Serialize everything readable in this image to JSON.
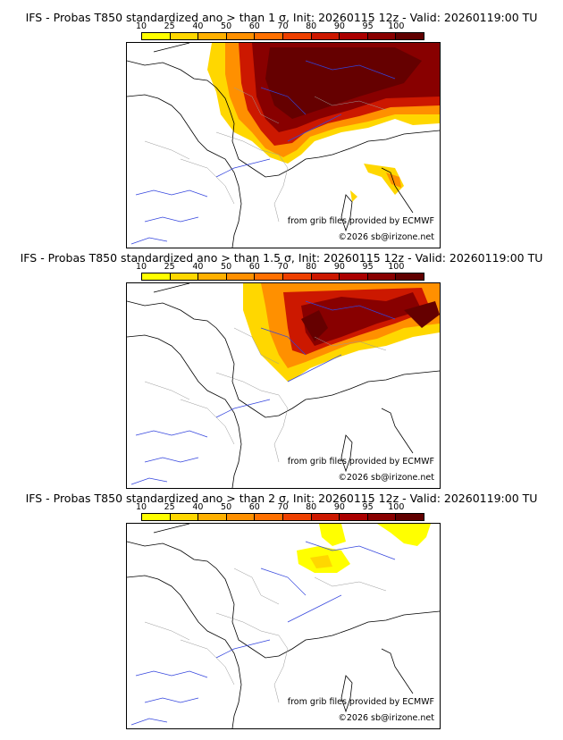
{
  "colorbar": {
    "labels": [
      "10",
      "25",
      "40",
      "50",
      "60",
      "70",
      "80",
      "90",
      "95",
      "100"
    ],
    "colors": [
      "#ffff00",
      "#ffd700",
      "#ffb000",
      "#ff9000",
      "#ff7000",
      "#ee4000",
      "#cc1800",
      "#aa0000",
      "#880000",
      "#600000"
    ]
  },
  "panels": [
    {
      "title": "IFS - Probas T850  standardized ano > than 1 σ, Init: 20260115 12z - Valid: 20260119:00 TU",
      "credit1": "from grib files provided by ECMWF",
      "credit2": "©2026 sb@irizone.net"
    },
    {
      "title": "IFS - Probas T850  standardized ano > than 1.5 σ, Init: 20260115 12z - Valid: 20260119:00 TU",
      "credit1": "from grib files provided by ECMWF",
      "credit2": "©2026 sb@irizone.net"
    },
    {
      "title": "IFS - Probas T850  standardized ano > than 2 σ, Init: 20260115 12z - Valid: 20260119:00 TU",
      "credit1": "from grib files provided by ECMWF",
      "credit2": "©2026 sb@irizone.net"
    }
  ]
}
